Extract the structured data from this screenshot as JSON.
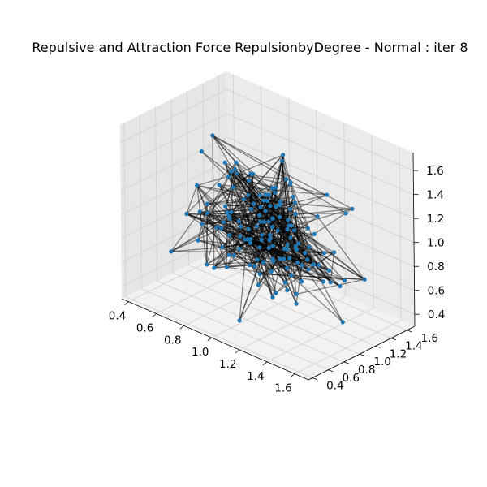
{
  "chart_data": {
    "type": "network-3d",
    "title": "Repulsive and Attraction Force RepulsionbyDegree - Normal : iter 8",
    "xlabel": "",
    "ylabel": "",
    "zlabel": "",
    "x_ticks": [
      "0.4",
      "0.6",
      "0.8",
      "1.0",
      "1.2",
      "1.4",
      "1.6"
    ],
    "y_ticks": [
      "0.4",
      "0.6",
      "0.8",
      "1.0",
      "1.2",
      "1.4",
      "1.6"
    ],
    "z_ticks": [
      "0.4",
      "0.6",
      "0.8",
      "1.0",
      "1.2",
      "1.4",
      "1.6"
    ],
    "xlim": [
      0.35,
      1.7
    ],
    "ylim": [
      0.35,
      1.7
    ],
    "zlim": [
      0.3,
      1.75
    ],
    "grid": true,
    "node_color": "#1f77b4",
    "edge_color": "#000000",
    "edge_alpha": 0.45,
    "node_count": 150,
    "layout_seed": 8
  }
}
